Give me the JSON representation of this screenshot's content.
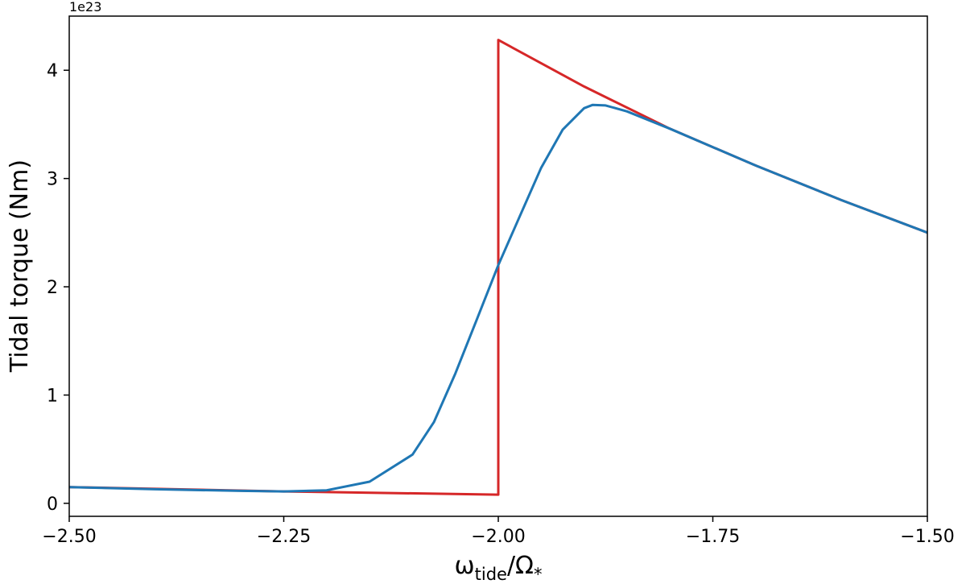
{
  "chart_data": {
    "type": "line",
    "title": "",
    "xlabel": "ω_tide/Ω_*",
    "xlabel_main": "ω",
    "xlabel_sub": "tide",
    "xlabel_mid": "/Ω",
    "xlabel_sub2": "*",
    "ylabel": "Tidal torque (Nm)",
    "y_offset_text": "1e23",
    "xlim": [
      -2.5,
      -1.5
    ],
    "ylim": [
      -0.12,
      4.5
    ],
    "x_ticks": [
      -2.5,
      -2.25,
      -2.0,
      -1.75,
      -1.5
    ],
    "x_tick_labels": [
      "−2.50",
      "−2.25",
      "−2.00",
      "−1.75",
      "−1.50"
    ],
    "y_ticks": [
      0,
      1,
      2,
      3,
      4
    ],
    "y_tick_labels": [
      "0",
      "1",
      "2",
      "3",
      "4"
    ],
    "grid": false,
    "legend": "none",
    "series": [
      {
        "color": "#d62728",
        "points": [
          [
            -2.5,
            0.15
          ],
          [
            -2.25,
            0.11
          ],
          [
            -2.0,
            0.08
          ],
          [
            -2.0,
            4.28
          ],
          [
            -1.9,
            3.85
          ],
          [
            -1.8,
            3.46
          ],
          [
            -1.7,
            3.12
          ],
          [
            -1.6,
            2.8
          ],
          [
            -1.5,
            2.5
          ]
        ]
      },
      {
        "color": "#1f77b4",
        "points": [
          [
            -2.5,
            0.15
          ],
          [
            -2.4,
            0.13
          ],
          [
            -2.3,
            0.115
          ],
          [
            -2.25,
            0.11
          ],
          [
            -2.2,
            0.12
          ],
          [
            -2.15,
            0.2
          ],
          [
            -2.1,
            0.45
          ],
          [
            -2.075,
            0.75
          ],
          [
            -2.05,
            1.2
          ],
          [
            -2.025,
            1.7
          ],
          [
            -2.0,
            2.2
          ],
          [
            -1.975,
            2.65
          ],
          [
            -1.95,
            3.1
          ],
          [
            -1.925,
            3.45
          ],
          [
            -1.9,
            3.65
          ],
          [
            -1.89,
            3.68
          ],
          [
            -1.875,
            3.675
          ],
          [
            -1.85,
            3.62
          ],
          [
            -1.8,
            3.46
          ],
          [
            -1.7,
            3.12
          ],
          [
            -1.6,
            2.8
          ],
          [
            -1.5,
            2.5
          ]
        ]
      }
    ]
  }
}
